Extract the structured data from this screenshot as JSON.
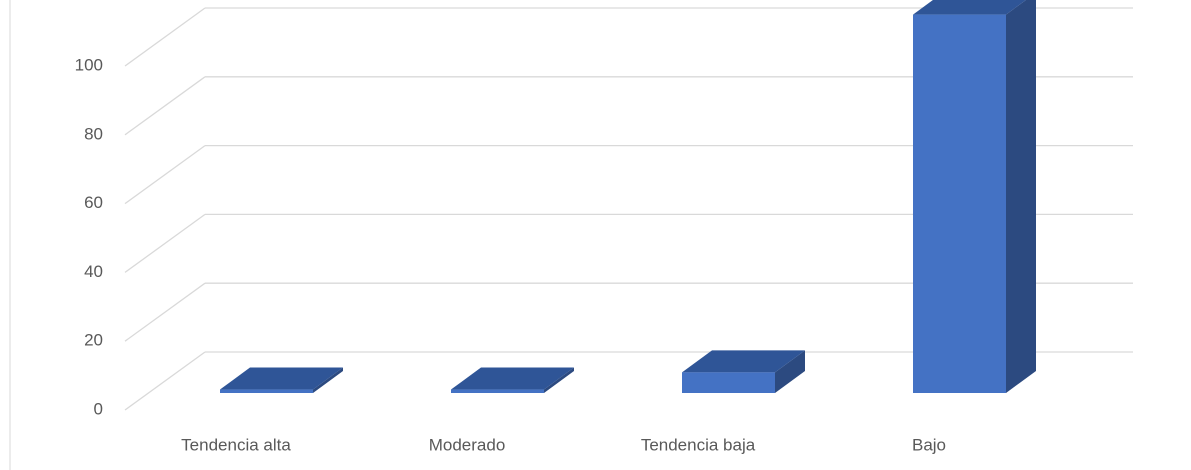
{
  "chart_data": {
    "type": "bar3d",
    "categories": [
      "Tendencia alta",
      "Moderado",
      "Tendencia baja",
      "Bajo"
    ],
    "values": [
      1,
      1,
      6,
      110
    ],
    "color": "#4472c4",
    "ylim": [
      0,
      100
    ],
    "yticks": [
      0,
      20,
      40,
      60,
      80,
      100
    ],
    "grid": true
  }
}
